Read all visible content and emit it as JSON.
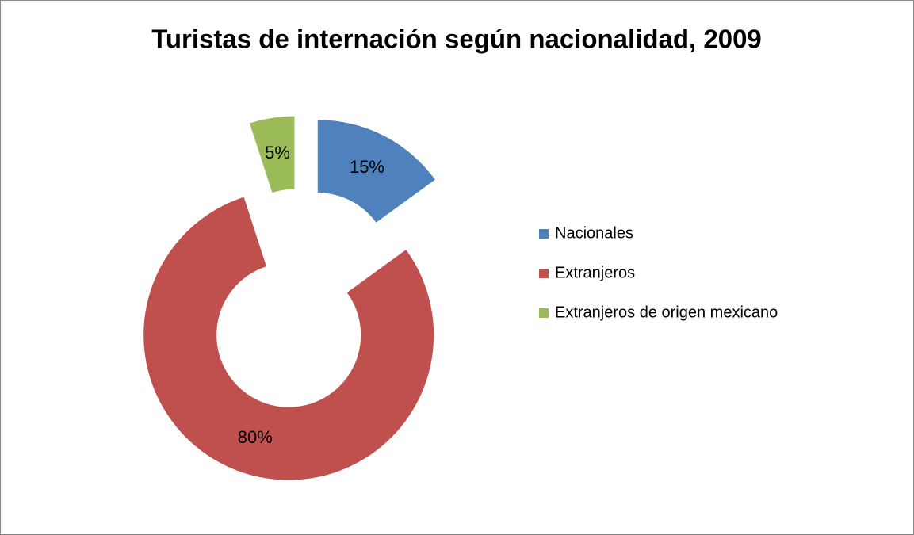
{
  "chart_data": {
    "type": "donut",
    "title": "Turistas de internación según nacionalidad, 2009",
    "categories": [
      "Nacionales",
      "Extranjeros",
      "Extranjeros de origen mexicano"
    ],
    "values": [
      15,
      80,
      5
    ],
    "value_labels": [
      "15%",
      "80%",
      "5%"
    ],
    "colors": [
      "#4f81bd",
      "#c0504d",
      "#9bbb59"
    ],
    "exploded": true,
    "legend": "right"
  }
}
